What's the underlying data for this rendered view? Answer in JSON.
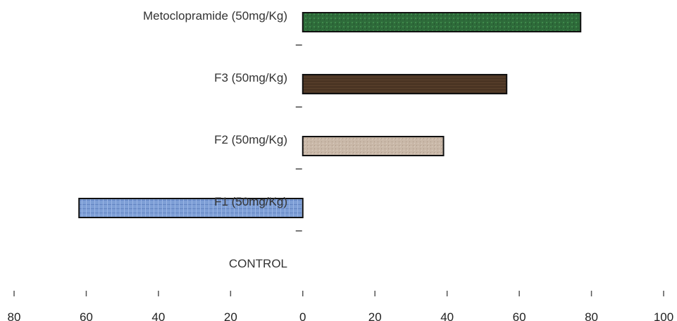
{
  "chart_data": {
    "type": "bar",
    "orientation": "horizontal",
    "categories": [
      "Metoclopramide (50mg/Kg)",
      "F3 (50mg/Kg)",
      "F2 (50mg/Kg)",
      "F1 (50mg/Kg)",
      "CONTROL"
    ],
    "values": [
      77,
      56.5,
      39,
      -62,
      0
    ],
    "bar_colors": [
      "#2e6b3a",
      "#4a3423",
      "#c9b8a8",
      "#7e9fd6",
      "#ffffff"
    ],
    "xlim": [
      -80,
      100
    ],
    "xticks": [
      -80,
      -60,
      -40,
      -20,
      0,
      20,
      40,
      60,
      80,
      100
    ],
    "xtick_labels": [
      "80",
      "60",
      "40",
      "20",
      "0",
      "20",
      "40",
      "60",
      "80",
      "100"
    ],
    "title": "",
    "xlabel": "",
    "ylabel": "",
    "grid": false,
    "legend": "none"
  }
}
